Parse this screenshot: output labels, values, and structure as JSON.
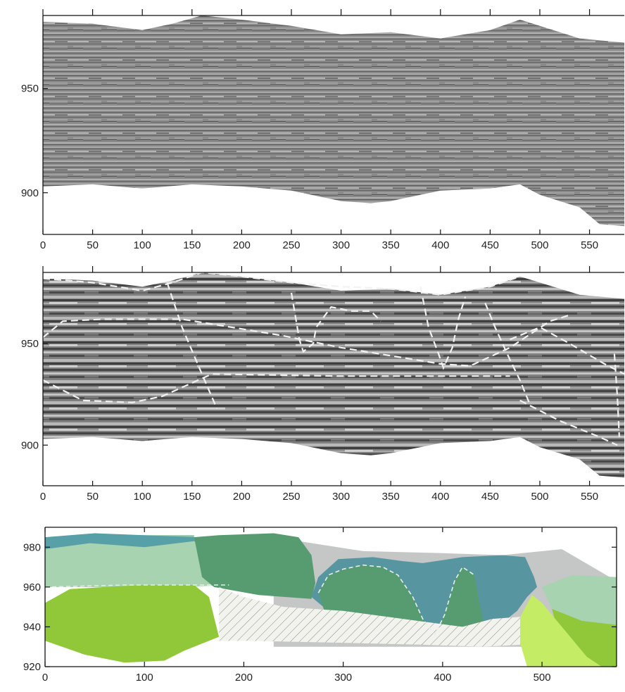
{
  "chart_data": [
    {
      "type": "heatmap",
      "panel": "seismic-section",
      "xlim": [
        0,
        585
      ],
      "ylim": [
        880,
        985
      ],
      "x_ticks": [
        0,
        50,
        100,
        150,
        200,
        250,
        300,
        350,
        400,
        450,
        500,
        550
      ],
      "y_ticks": [
        950,
        900
      ],
      "x_tick_labels": [
        "0",
        "50",
        "100",
        "150",
        "200",
        "250",
        "300",
        "350",
        "400",
        "450",
        "500",
        "550"
      ],
      "y_tick_labels": [
        "950",
        "900"
      ],
      "top_surface": [
        [
          0,
          982
        ],
        [
          50,
          981
        ],
        [
          100,
          978
        ],
        [
          130,
          981
        ],
        [
          160,
          985
        ],
        [
          200,
          983
        ],
        [
          250,
          980
        ],
        [
          300,
          976
        ],
        [
          350,
          977
        ],
        [
          400,
          974
        ],
        [
          450,
          978
        ],
        [
          480,
          983
        ],
        [
          500,
          980
        ],
        [
          540,
          974
        ],
        [
          585,
          972
        ]
      ],
      "bottom_surface": [
        [
          0,
          903
        ],
        [
          50,
          904
        ],
        [
          100,
          902
        ],
        [
          150,
          904
        ],
        [
          200,
          903
        ],
        [
          250,
          901
        ],
        [
          300,
          896
        ],
        [
          330,
          895
        ],
        [
          350,
          896
        ],
        [
          400,
          901
        ],
        [
          450,
          902
        ],
        [
          480,
          904
        ],
        [
          500,
          899
        ],
        [
          540,
          893
        ],
        [
          560,
          885
        ],
        [
          585,
          884
        ]
      ]
    },
    {
      "type": "heatmap",
      "panel": "interpreted-section",
      "xlim": [
        0,
        585
      ],
      "ylim": [
        880,
        985
      ],
      "x_ticks": [
        0,
        50,
        100,
        150,
        200,
        250,
        300,
        350,
        400,
        450,
        500,
        550
      ],
      "y_ticks": [
        950,
        900
      ],
      "x_tick_labels": [
        "0",
        "50",
        "100",
        "150",
        "200",
        "250",
        "300",
        "350",
        "400",
        "450",
        "500",
        "550"
      ],
      "y_tick_labels": [
        "950",
        "900"
      ],
      "colors": {
        "interpretation_lines": "#f2f2f2"
      },
      "interpretation_lines": [
        [
          [
            0,
            982
          ],
          [
            50,
            980
          ],
          [
            100,
            976
          ],
          [
            130,
            980
          ],
          [
            160,
            985
          ],
          [
            200,
            983
          ],
          [
            250,
            980
          ],
          [
            300,
            978
          ],
          [
            350,
            977
          ],
          [
            400,
            974
          ],
          [
            450,
            978
          ],
          [
            480,
            983
          ]
        ],
        [
          [
            0,
            953
          ],
          [
            20,
            961
          ],
          [
            60,
            962
          ],
          [
            140,
            962
          ],
          [
            190,
            958
          ],
          [
            240,
            954
          ],
          [
            300,
            948
          ],
          [
            350,
            944
          ],
          [
            400,
            940
          ],
          [
            430,
            939
          ],
          [
            470,
            948
          ],
          [
            510,
            961
          ],
          [
            530,
            964
          ]
        ],
        [
          [
            0,
            932
          ],
          [
            40,
            922
          ],
          [
            90,
            921
          ],
          [
            120,
            924
          ],
          [
            170,
            935
          ],
          [
            300,
            934
          ],
          [
            420,
            934
          ],
          [
            470,
            934
          ]
        ],
        [
          [
            125,
            980
          ],
          [
            140,
            958
          ],
          [
            160,
            935
          ],
          [
            175,
            918
          ]
        ],
        [
          [
            250,
            975
          ],
          [
            258,
            952
          ],
          [
            262,
            946
          ],
          [
            272,
            950
          ],
          [
            275,
            958
          ],
          [
            290,
            968
          ],
          [
            310,
            966
          ],
          [
            330,
            966
          ],
          [
            340,
            961
          ]
        ],
        [
          [
            380,
            978
          ],
          [
            388,
            958
          ],
          [
            398,
            945
          ],
          [
            403,
            938
          ],
          [
            412,
            948
          ],
          [
            418,
            962
          ],
          [
            425,
            973
          ]
        ],
        [
          [
            445,
            970
          ],
          [
            455,
            958
          ],
          [
            470,
            942
          ],
          [
            480,
            932
          ],
          [
            490,
            920
          ]
        ],
        [
          [
            470,
            952
          ],
          [
            500,
            958
          ],
          [
            530,
            950
          ],
          [
            565,
            940
          ],
          [
            585,
            935
          ]
        ],
        [
          [
            480,
            922
          ],
          [
            520,
            912
          ],
          [
            560,
            904
          ],
          [
            578,
            900
          ]
        ],
        [
          [
            575,
            945
          ],
          [
            578,
            924
          ],
          [
            580,
            904
          ]
        ]
      ]
    },
    {
      "type": "area",
      "panel": "geological-model",
      "xlim": [
        0,
        575
      ],
      "ylim": [
        920,
        990
      ],
      "x_ticks": [
        0,
        100,
        200,
        300,
        400,
        500
      ],
      "y_ticks": [
        980,
        960,
        940,
        920
      ],
      "x_tick_labels": [
        "0",
        "100",
        "200",
        "300",
        "400",
        "500"
      ],
      "y_tick_labels": [
        "980",
        "960",
        "940",
        "920"
      ],
      "units": [
        {
          "color": "#c5c6c6",
          "polygon": [
            [
              230,
              985
            ],
            [
              320,
              978
            ],
            [
              400,
              977
            ],
            [
              460,
              976
            ],
            [
              520,
              979
            ],
            [
              575,
              963
            ],
            [
              575,
              930
            ],
            [
              230,
              930
            ]
          ]
        },
        {
          "color": "#8bc3a3",
          "polygon": [
            [
              0,
              984
            ],
            [
              40,
              986
            ],
            [
              100,
              986
            ],
            [
              150,
              986
            ],
            [
              150,
              960
            ],
            [
              0,
              960
            ]
          ]
        },
        {
          "color": "#57a0a7",
          "polygon": [
            [
              0,
              985
            ],
            [
              50,
              987
            ],
            [
              150,
              985
            ],
            [
              200,
              983
            ],
            [
              200,
              978
            ],
            [
              0,
              978
            ]
          ]
        },
        {
          "color": "#a7d3b1",
          "polygon": [
            [
              0,
              979
            ],
            [
              45,
              982
            ],
            [
              100,
              980
            ],
            [
              150,
              983
            ],
            [
              175,
              975
            ],
            [
              185,
              961
            ],
            [
              140,
              960
            ],
            [
              0,
              960
            ]
          ]
        },
        {
          "color": "#579b71",
          "polygon": [
            [
              150,
              985
            ],
            [
              175,
              986
            ],
            [
              230,
              987
            ],
            [
              255,
              985
            ],
            [
              268,
              976
            ],
            [
              272,
              962
            ],
            [
              268,
              954
            ],
            [
              215,
              956
            ],
            [
              170,
              960
            ],
            [
              158,
              965
            ]
          ]
        },
        {
          "color": "#91c83a",
          "polygon": [
            [
              0,
              952
            ],
            [
              25,
              959
            ],
            [
              60,
              960
            ],
            [
              100,
              961
            ],
            [
              150,
              961
            ],
            [
              165,
              955
            ],
            [
              175,
              935
            ],
            [
              140,
              928
            ],
            [
              120,
              923
            ],
            [
              80,
              922
            ],
            [
              40,
              926
            ],
            [
              0,
              933
            ]
          ]
        },
        {
          "color": "#5796a1",
          "polygon": [
            [
              268,
              955
            ],
            [
              275,
              965
            ],
            [
              295,
              974
            ],
            [
              330,
              975
            ],
            [
              360,
              973
            ],
            [
              380,
              972
            ],
            [
              420,
              975
            ],
            [
              460,
              976
            ],
            [
              483,
              975
            ],
            [
              492,
              965
            ],
            [
              495,
              960
            ],
            [
              485,
              955
            ],
            [
              475,
              948
            ],
            [
              455,
              940
            ],
            [
              420,
              935
            ],
            [
              360,
              935
            ],
            [
              300,
              945
            ],
            [
              280,
              950
            ]
          ]
        },
        {
          "color": "#579b71",
          "polygon": [
            [
              275,
              957
            ],
            [
              285,
              966
            ],
            [
              300,
              969
            ],
            [
              320,
              971
            ],
            [
              340,
              970
            ],
            [
              355,
              966
            ],
            [
              370,
              955
            ],
            [
              380,
              944
            ],
            [
              392,
              936
            ],
            [
              402,
              946
            ],
            [
              412,
              963
            ],
            [
              420,
              970
            ],
            [
              432,
              966
            ],
            [
              436,
              955
            ],
            [
              442,
              940
            ],
            [
              448,
              934
            ],
            [
              430,
              932
            ],
            [
              380,
              931
            ],
            [
              320,
              932
            ],
            [
              285,
              942
            ]
          ]
        },
        {
          "color": "#a7d3b1",
          "polygon": [
            [
              500,
              960
            ],
            [
              530,
              966
            ],
            [
              575,
              965
            ],
            [
              575,
              941
            ],
            [
              540,
              943
            ],
            [
              510,
              949
            ]
          ]
        },
        {
          "color": "#91c83a",
          "polygon": [
            [
              510,
              949
            ],
            [
              540,
              943
            ],
            [
              575,
              941
            ],
            [
              575,
              920
            ],
            [
              545,
              920
            ],
            [
              520,
              930
            ]
          ]
        },
        {
          "color": "#c4ec64",
          "polygon": [
            [
              478,
              945
            ],
            [
              490,
              956
            ],
            [
              500,
              952
            ],
            [
              520,
              940
            ],
            [
              545,
              925
            ],
            [
              560,
              920
            ],
            [
              485,
              920
            ],
            [
              478,
              932
            ]
          ]
        }
      ],
      "hatched_unit": {
        "polygon": [
          [
            175,
            960
          ],
          [
            200,
            955
          ],
          [
            240,
            950
          ],
          [
            300,
            948
          ],
          [
            360,
            944
          ],
          [
            420,
            940
          ],
          [
            450,
            944
          ],
          [
            478,
            945
          ],
          [
            478,
            931
          ],
          [
            440,
            930
          ],
          [
            380,
            931
          ],
          [
            300,
            932
          ],
          [
            200,
            933
          ],
          [
            175,
            933
          ]
        ],
        "pattern": "diagonal-hatch"
      }
    }
  ]
}
